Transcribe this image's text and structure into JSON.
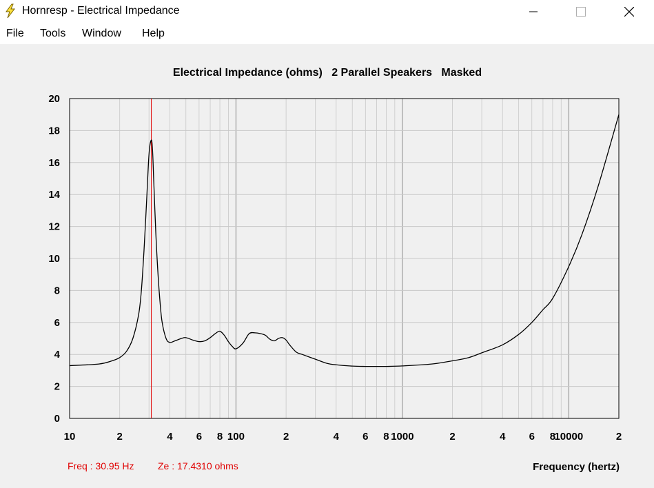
{
  "window": {
    "title": "Hornresp - Electrical Impedance",
    "icon": "lightning-bolt-icon"
  },
  "menu": {
    "items": [
      "File",
      "Tools",
      "Window",
      "Help"
    ]
  },
  "readout": {
    "freq": "Freq : 30.95 Hz",
    "ze": "Ze : 17.4310 ohms"
  },
  "colors": {
    "cursor": "#e00000",
    "curve": "#000000",
    "grid": "#c8c8c8"
  },
  "chart_data": {
    "type": "line",
    "title": "Electrical Impedance (ohms)   2 Parallel Speakers   Masked",
    "xlabel": "Frequency (hertz)",
    "ylabel": "",
    "x_scale": "log",
    "xlim": [
      10,
      20000
    ],
    "ylim": [
      0,
      20
    ],
    "y_ticks": [
      0,
      2,
      4,
      6,
      8,
      10,
      12,
      14,
      16,
      18,
      20
    ],
    "x_tick_labels": [
      {
        "x": 10,
        "label": "10"
      },
      {
        "x": 20,
        "label": "2"
      },
      {
        "x": 40,
        "label": "4"
      },
      {
        "x": 60,
        "label": "6"
      },
      {
        "x": 80,
        "label": "8"
      },
      {
        "x": 100,
        "label": "100"
      },
      {
        "x": 200,
        "label": "2"
      },
      {
        "x": 400,
        "label": "4"
      },
      {
        "x": 600,
        "label": "6"
      },
      {
        "x": 800,
        "label": "8"
      },
      {
        "x": 1000,
        "label": "1000"
      },
      {
        "x": 2000,
        "label": "2"
      },
      {
        "x": 4000,
        "label": "4"
      },
      {
        "x": 6000,
        "label": "6"
      },
      {
        "x": 8000,
        "label": "8"
      },
      {
        "x": 10000,
        "label": "10000"
      },
      {
        "x": 20000,
        "label": "2"
      }
    ],
    "grid": true,
    "cursor_x": 30.95,
    "series": [
      {
        "x": [
          10,
          15,
          18,
          20,
          22,
          24,
          26,
          27,
          28,
          29,
          30,
          30.95,
          31.5,
          32,
          33,
          34,
          35,
          36,
          38,
          40,
          43,
          47,
          50,
          55,
          60,
          65,
          70,
          75,
          80,
          85,
          90,
          95,
          100,
          110,
          120,
          130,
          140,
          150,
          160,
          170,
          180,
          190,
          200,
          210,
          230,
          250,
          300,
          350,
          400,
          500,
          600,
          700,
          800,
          1000,
          1500,
          2000,
          2500,
          3000,
          4000,
          5000,
          6000,
          7000,
          8000,
          10000,
          12000,
          15000,
          20000
        ],
        "y": [
          3.3,
          3.4,
          3.6,
          3.8,
          4.2,
          5.0,
          6.5,
          8.0,
          10.5,
          13.5,
          16.5,
          17.4,
          16.8,
          15.0,
          11.5,
          9.0,
          7.2,
          6.0,
          5.0,
          4.75,
          4.85,
          5.0,
          5.05,
          4.9,
          4.8,
          4.85,
          5.05,
          5.3,
          5.45,
          5.2,
          4.8,
          4.5,
          4.35,
          4.7,
          5.3,
          5.35,
          5.3,
          5.2,
          4.95,
          4.85,
          5.0,
          5.05,
          4.9,
          4.6,
          4.15,
          4.0,
          3.7,
          3.45,
          3.35,
          3.27,
          3.25,
          3.25,
          3.25,
          3.28,
          3.4,
          3.6,
          3.8,
          4.1,
          4.6,
          5.25,
          6.0,
          6.8,
          7.5,
          9.5,
          11.5,
          14.5,
          19.0
        ]
      }
    ]
  }
}
